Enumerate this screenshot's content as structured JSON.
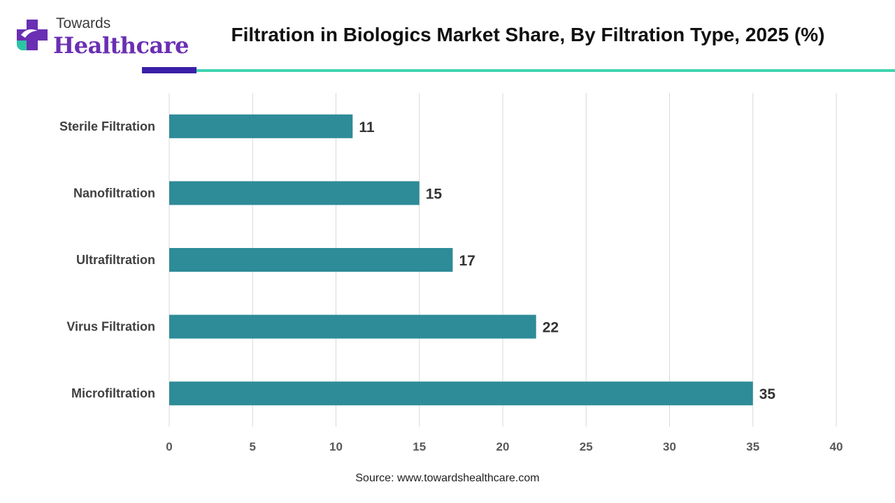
{
  "brand": {
    "top": "Towards",
    "bottom": "Healthcare",
    "colors": {
      "purple": "#6a2fb3",
      "teal": "#2ec4a6",
      "accent_bar": "#3a1fa8",
      "accent_line": "#3fd4b0"
    }
  },
  "header": {
    "title": "Filtration in Biologics Market Share, By Filtration Type, 2025 (%)"
  },
  "chart_data": {
    "type": "bar",
    "orientation": "horizontal",
    "categories": [
      "Sterile Filtration",
      "Nanofiltration",
      "Ultrafiltration",
      "Virus Filtration",
      "Microfiltration"
    ],
    "values": [
      11,
      15,
      17,
      22,
      35
    ],
    "data_labels": [
      "11",
      "15",
      "17",
      "22",
      "35"
    ],
    "xlim": [
      0,
      40
    ],
    "x_ticks": [
      0,
      5,
      10,
      15,
      20,
      25,
      30,
      35,
      40
    ],
    "x_tick_labels": [
      "0",
      "5",
      "10",
      "15",
      "20",
      "25",
      "30",
      "35",
      "40"
    ],
    "grid": true,
    "legend": "none",
    "bar_color": "#2e8b98",
    "grid_color": "#d9d9d9"
  },
  "footer": {
    "source": "Source: www.towardshealthcare.com"
  }
}
